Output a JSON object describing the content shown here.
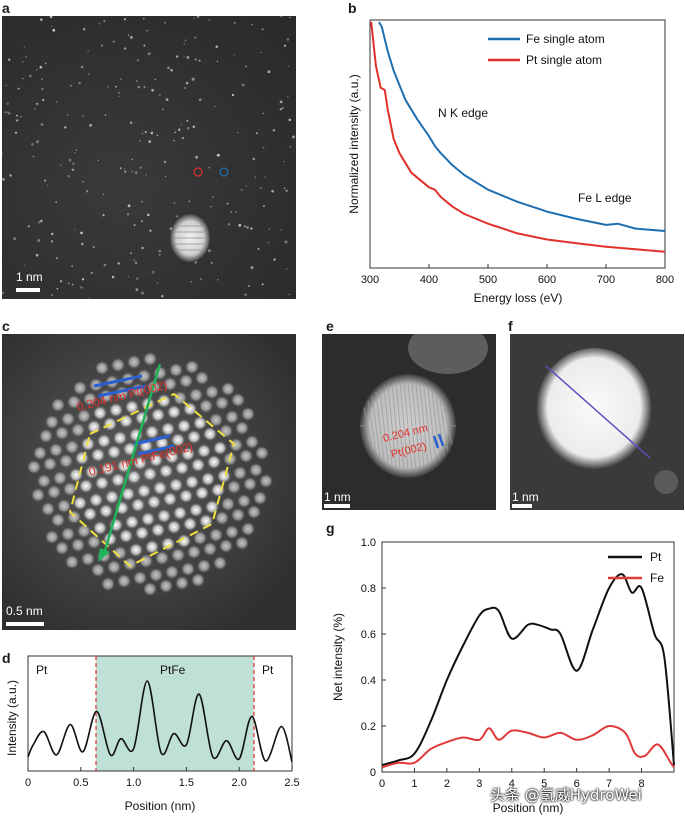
{
  "panels": {
    "a": {
      "letter": "a",
      "scalebar": "1 nm"
    },
    "b": {
      "letter": "b"
    },
    "c": {
      "letter": "c",
      "scalebar": "0.5 nm",
      "label_pt": "0.204 nm Pt(002)",
      "label_ptfe": "0.191 nm PtFe(002)"
    },
    "d": {
      "letter": "d",
      "region_left": "Pt",
      "region_mid": "PtFe",
      "region_right": "Pt"
    },
    "e": {
      "letter": "e",
      "scalebar": "1 nm",
      "label_line1": "0.204 nm",
      "label_line2": "Pt(002)"
    },
    "f": {
      "letter": "f",
      "scalebar": "1 nm"
    },
    "g": {
      "letter": "g"
    }
  },
  "watermark": "头条 @氢威HydroWei",
  "colors": {
    "fe_blue": "#1f6fb0",
    "pt_red": "#e0312b",
    "black": "#111111",
    "fe_red_g": "#e03a3a",
    "shade": "#bfe0d6"
  },
  "chart_data": [
    {
      "id": "b",
      "type": "line",
      "xlabel": "Energy loss (eV)",
      "ylabel": "Normalized intensity (a.u.)",
      "xlim": [
        300,
        800
      ],
      "xticks": [
        "300",
        "400",
        "500",
        "600",
        "700",
        "800"
      ],
      "annotations": [
        "N K edge",
        "Fe L edge"
      ],
      "legend_position": "top-right",
      "series": [
        {
          "name": "Fe single atom",
          "color": "#1f6fb0",
          "x": [
            315,
            320,
            330,
            340,
            350,
            360,
            380,
            400,
            410,
            420,
            440,
            460,
            500,
            550,
            600,
            650,
            700,
            720,
            750,
            800
          ],
          "y": [
            1.0,
            0.98,
            0.88,
            0.8,
            0.74,
            0.68,
            0.6,
            0.53,
            0.49,
            0.46,
            0.41,
            0.37,
            0.31,
            0.26,
            0.22,
            0.19,
            0.165,
            0.17,
            0.15,
            0.14
          ]
        },
        {
          "name": "Pt  single atom",
          "color": "#e0312b",
          "x": [
            302,
            310,
            318,
            325,
            330,
            340,
            350,
            370,
            400,
            410,
            420,
            440,
            460,
            500,
            550,
            600,
            650,
            700,
            750,
            800
          ],
          "y": [
            1.0,
            0.82,
            0.73,
            0.72,
            0.64,
            0.52,
            0.46,
            0.38,
            0.32,
            0.31,
            0.28,
            0.24,
            0.21,
            0.17,
            0.13,
            0.105,
            0.09,
            0.075,
            0.065,
            0.055
          ]
        }
      ]
    },
    {
      "id": "d",
      "type": "line",
      "xlabel": "Position (nm)",
      "ylabel": "Intensity (a.u.)",
      "xlim": [
        0,
        2.5
      ],
      "xticks": [
        "0",
        "0.5",
        "1.0",
        "1.5",
        "2.0",
        "2.5"
      ],
      "shaded_region": [
        0.65,
        2.12
      ],
      "series": [
        {
          "name": "",
          "color": "#111111",
          "x": [
            0,
            0.05,
            0.15,
            0.27,
            0.4,
            0.52,
            0.65,
            0.78,
            0.88,
            1.0,
            1.13,
            1.26,
            1.38,
            1.5,
            1.62,
            1.75,
            1.88,
            2.0,
            2.12,
            2.25,
            2.4,
            2.5
          ],
          "y": [
            0.1,
            0.22,
            0.35,
            0.12,
            0.42,
            0.15,
            0.55,
            0.12,
            0.28,
            0.18,
            0.85,
            0.14,
            0.33,
            0.22,
            0.72,
            0.1,
            0.26,
            0.08,
            0.5,
            0.06,
            0.4,
            0.05
          ]
        }
      ]
    },
    {
      "id": "g",
      "type": "line",
      "xlabel": "Position (nm)",
      "ylabel": "Net intensity (%)",
      "xlim": [
        0,
        9
      ],
      "ylim": [
        0,
        1.0
      ],
      "xticks": [
        "0",
        "1",
        "2",
        "3",
        "4",
        "5",
        "6",
        "7",
        "8"
      ],
      "yticks": [
        "0",
        "0.2",
        "0.4",
        "0.6",
        "0.8",
        "1.0"
      ],
      "legend_position": "top-right",
      "series": [
        {
          "name": "Pt",
          "color": "#111111",
          "x": [
            0,
            0.5,
            1.0,
            1.5,
            2.0,
            2.5,
            3.0,
            3.3,
            3.6,
            4.0,
            4.5,
            4.8,
            5.2,
            5.5,
            6.0,
            6.5,
            7.0,
            7.4,
            7.7,
            8.0,
            8.4,
            8.7,
            9.0
          ],
          "y": [
            0.03,
            0.05,
            0.08,
            0.22,
            0.4,
            0.55,
            0.68,
            0.71,
            0.7,
            0.58,
            0.64,
            0.64,
            0.62,
            0.6,
            0.44,
            0.62,
            0.8,
            0.86,
            0.78,
            0.8,
            0.6,
            0.5,
            0.03
          ]
        },
        {
          "name": "Fe",
          "color": "#e03a3a",
          "x": [
            0,
            0.5,
            1.0,
            1.5,
            2.0,
            2.5,
            3.0,
            3.3,
            3.6,
            4.0,
            4.5,
            5.0,
            5.5,
            6.0,
            6.5,
            7.0,
            7.5,
            7.8,
            8.1,
            8.5,
            8.9,
            9.0
          ],
          "y": [
            0.02,
            0.04,
            0.04,
            0.1,
            0.13,
            0.15,
            0.14,
            0.19,
            0.14,
            0.18,
            0.17,
            0.15,
            0.17,
            0.14,
            0.16,
            0.2,
            0.17,
            0.08,
            0.07,
            0.12,
            0.04,
            0.02
          ]
        }
      ]
    }
  ]
}
